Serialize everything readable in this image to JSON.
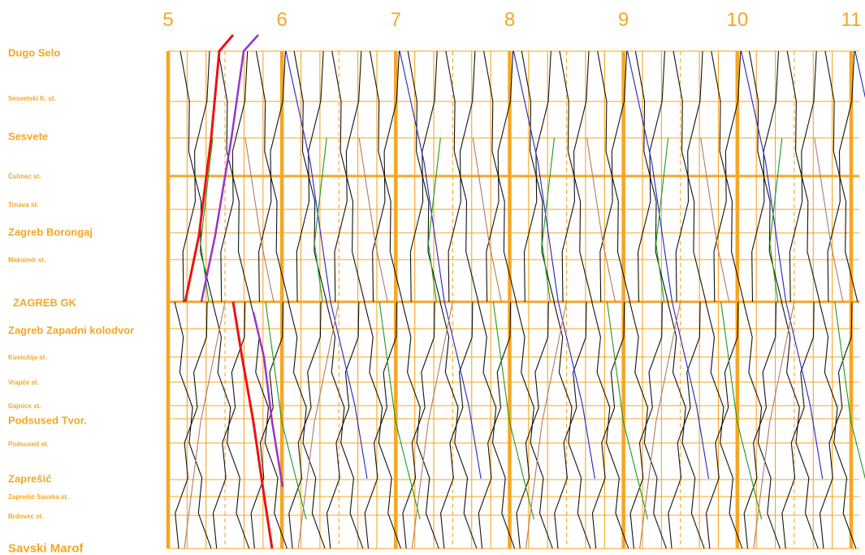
{
  "chart_data": {
    "type": "line",
    "title": "",
    "xlabel": "",
    "ylabel": "",
    "x_ticks": [
      "5",
      "6",
      "7",
      "8",
      "9",
      "10",
      "11"
    ],
    "x_range": [
      5,
      11
    ],
    "grid": true,
    "legend": "none",
    "stations": [
      {
        "name": "Dugo Selo",
        "major": true
      },
      {
        "name": "Sesvetski K. st.",
        "major": false
      },
      {
        "name": "Sesvete",
        "major": true
      },
      {
        "name": "Čulinec st.",
        "major": false
      },
      {
        "name": "Trnava st.",
        "major": false
      },
      {
        "name": "Zagreb Borongaj",
        "major": true
      },
      {
        "name": "Maksimir st.",
        "major": false
      },
      {
        "name": "ZAGREB GK",
        "major": true
      },
      {
        "name": "Zagreb Zapadni kolodvor",
        "major": true
      },
      {
        "name": "Kustošija st.",
        "major": false
      },
      {
        "name": "Vrapče st.",
        "major": false
      },
      {
        "name": "Gajnice st.",
        "major": false
      },
      {
        "name": "Podsused Tvor.",
        "major": true
      },
      {
        "name": "Podsused st.",
        "major": false
      },
      {
        "name": "Zaprešić",
        "major": true
      },
      {
        "name": "Zaprešić Savska st.",
        "major": false
      },
      {
        "name": "Brdovec st.",
        "major": false
      },
      {
        "name": "Savski Marof",
        "major": true
      }
    ],
    "colors": {
      "grid": "#f5a623",
      "train_default": "#111111",
      "train_blue": "#2222cc",
      "train_green": "#1a9a1a",
      "train_brown": "#b07a6a",
      "train_red": "#ee1111",
      "train_purple": "#9933cc"
    }
  }
}
